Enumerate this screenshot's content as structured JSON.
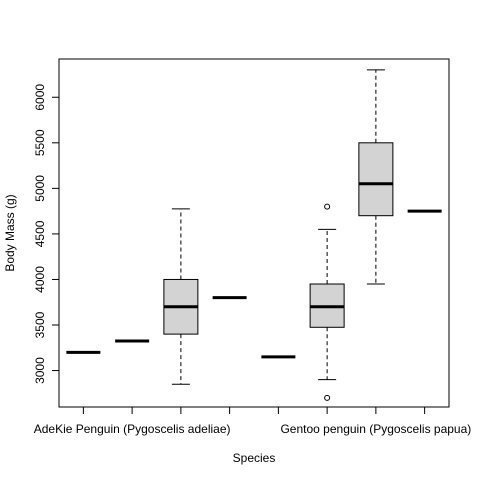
{
  "chart_data": {
    "type": "box",
    "xlabel": "Species",
    "ylabel": "Body Mass (g)",
    "ylim": [
      2600,
      6420
    ],
    "y_ticks": [
      3000,
      3500,
      4000,
      4500,
      5000,
      5500,
      6000
    ],
    "x_tick_labels": [
      {
        "label": "AdeKie Penguin (Pygoscelis adeliae)",
        "position": 2
      },
      {
        "label": "Gentoo penguin (Pygoscelis papua)",
        "position": 7
      }
    ],
    "groups": [
      {
        "position": 1,
        "min": 3200,
        "q1": 3200,
        "median": 3200,
        "q3": 3200,
        "max": 3200,
        "outliers": []
      },
      {
        "position": 2,
        "min": 3325,
        "q1": 3325,
        "median": 3325,
        "q3": 3325,
        "max": 3325,
        "outliers": []
      },
      {
        "position": 3,
        "min": 2850,
        "q1": 3400,
        "median": 3700,
        "q3": 4000,
        "max": 4775,
        "outliers": []
      },
      {
        "position": 4,
        "min": 3800,
        "q1": 3800,
        "median": 3800,
        "q3": 3800,
        "max": 3800,
        "outliers": []
      },
      {
        "position": 5,
        "min": 3150,
        "q1": 3150,
        "median": 3150,
        "q3": 3150,
        "max": 3150,
        "outliers": []
      },
      {
        "position": 6,
        "min": 2900,
        "q1": 3475,
        "median": 3700,
        "q3": 3950,
        "max": 4550,
        "outliers": [
          4800,
          2700
        ]
      },
      {
        "position": 7,
        "min": 3950,
        "q1": 4700,
        "median": 5050,
        "q3": 5500,
        "max": 6300,
        "outliers": []
      },
      {
        "position": 8,
        "min": 4750,
        "q1": 4750,
        "median": 4750,
        "q3": 4750,
        "max": 4750,
        "outliers": []
      }
    ],
    "box_fill": "#d3d3d3",
    "grid": false,
    "legend": "none"
  }
}
